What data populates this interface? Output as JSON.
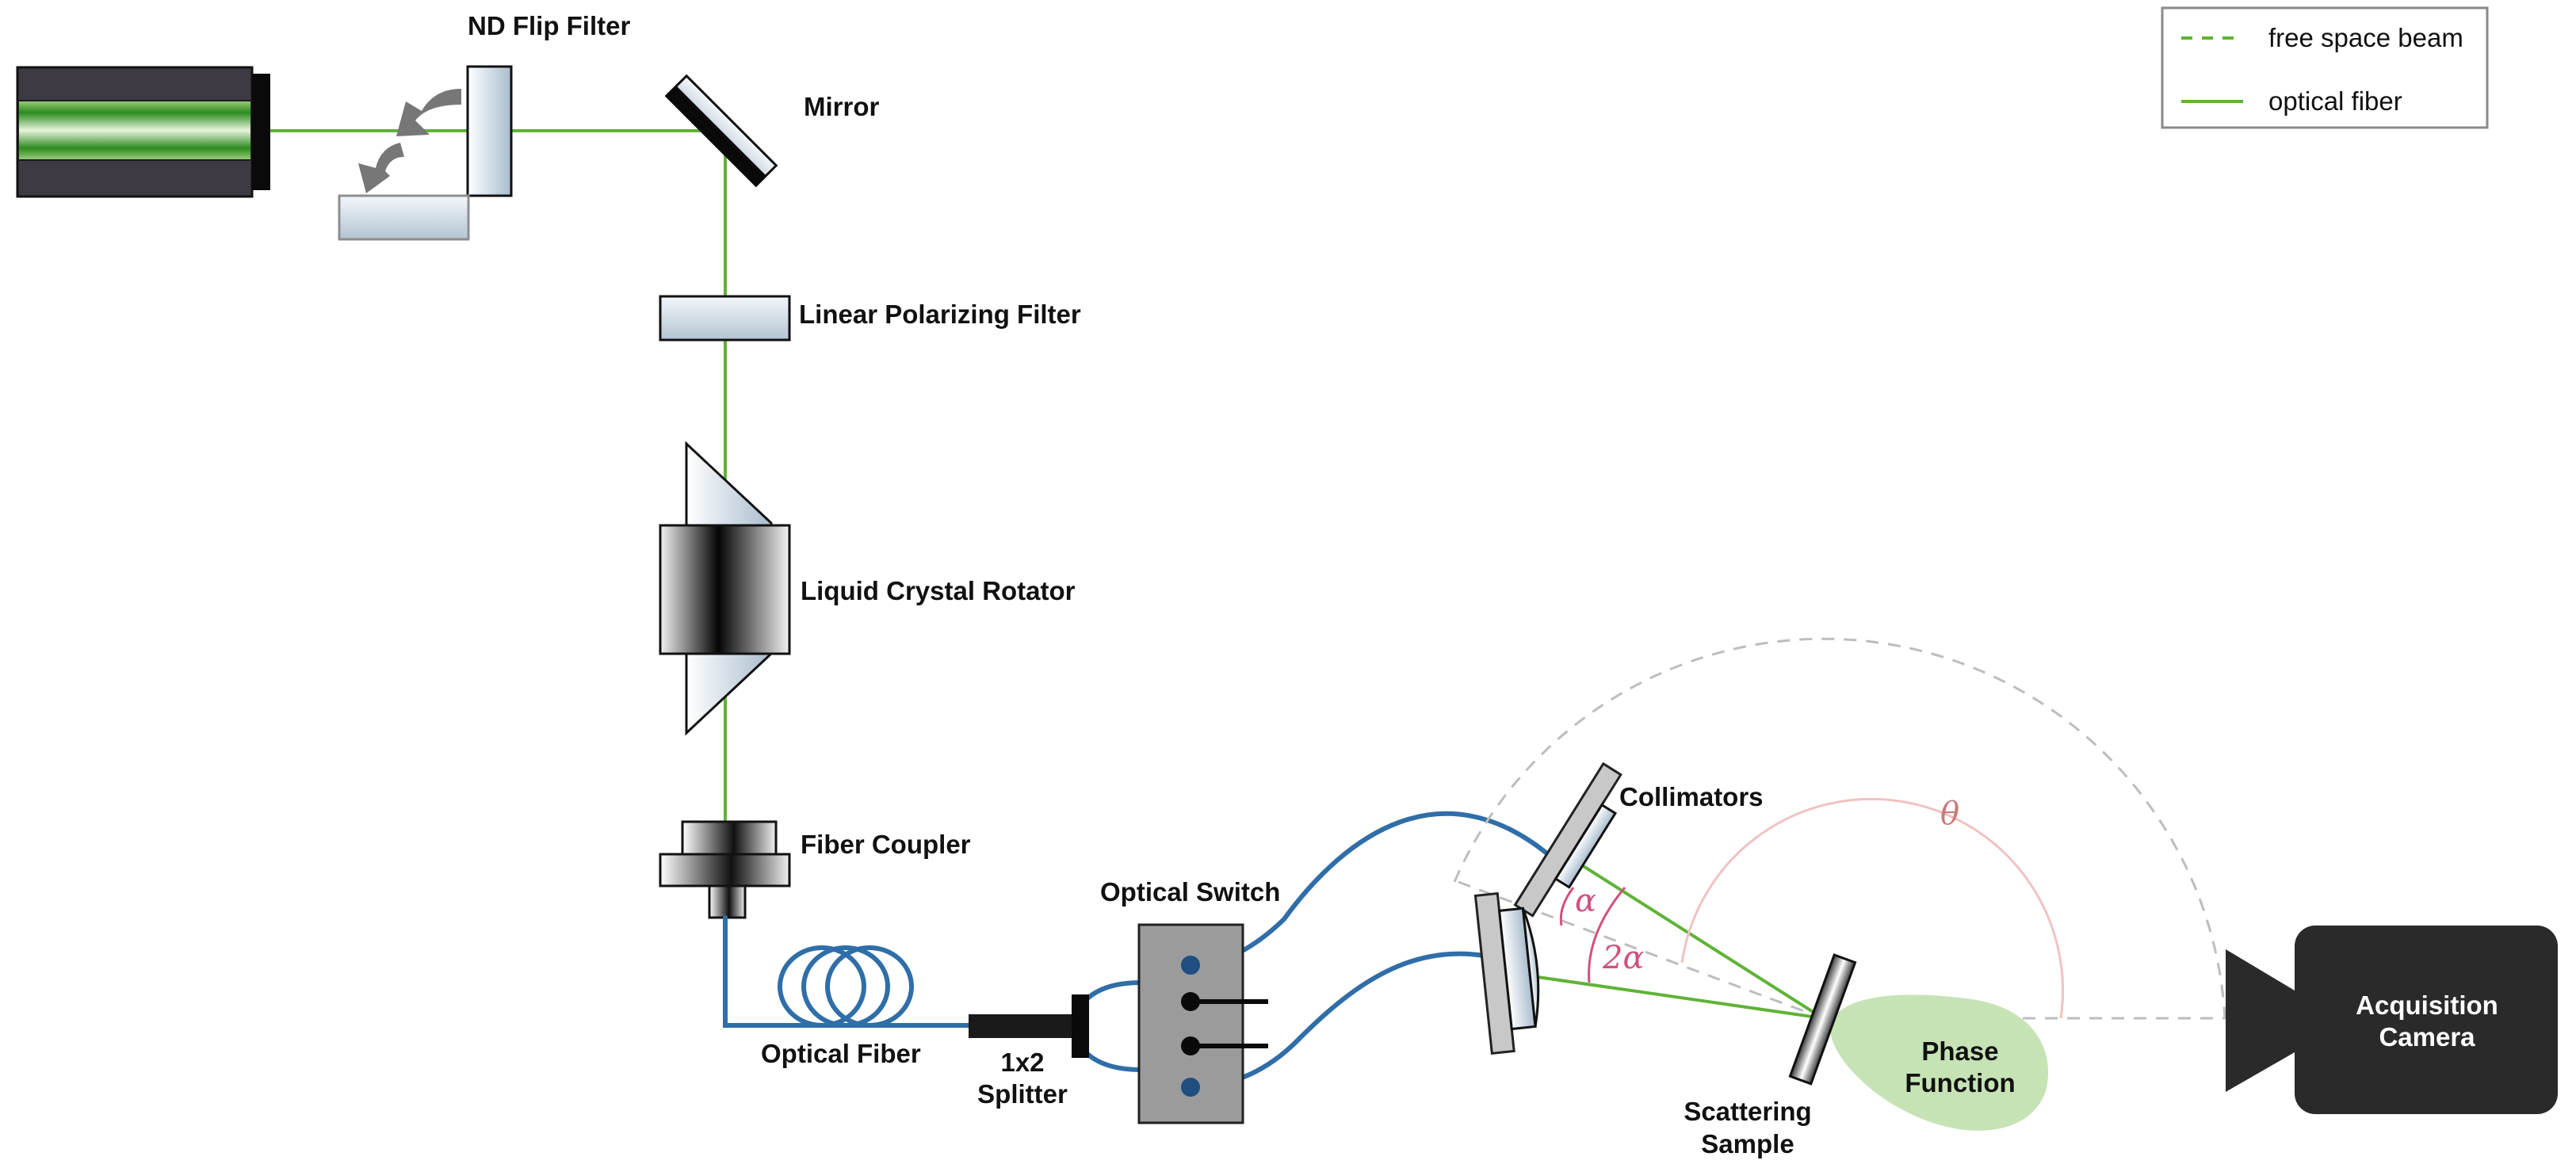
{
  "labels": {
    "nd_flip_filter": "ND Flip Filter",
    "mirror": "Mirror",
    "linear_polarizing_filter": "Linear Polarizing Filter",
    "liquid_crystal_rotator": "Liquid Crystal Rotator",
    "fiber_coupler": "Fiber Coupler",
    "optical_fiber": "Optical Fiber",
    "optical_switch": "Optical Switch",
    "splitter_line1": "1x2",
    "splitter_line2": "Splitter",
    "collimators": "Collimators",
    "scattering_sample_line1": "Scattering",
    "scattering_sample_line2": "Sample",
    "phase_function_line1": "Phase",
    "phase_function_line2": "Function",
    "acquisition_camera_line1": "Acquisition",
    "acquisition_camera_line2": "Camera"
  },
  "angles": {
    "alpha": "α",
    "two_alpha": "2α",
    "theta": "θ"
  },
  "legend": {
    "free_space_beam": "free space beam",
    "optical_fiber": "optical fiber"
  },
  "colors": {
    "beam_green": "#5fb336",
    "fiber_blue": "#2f6ea8",
    "angle_pink": "#d0507f",
    "theta_pink": "#c87a7a",
    "phase_function_fill": "#c6e3b5",
    "camera_body": "#2a2a2a",
    "laser_body": "#3e3a44",
    "optic_tint": "#dfe8f0"
  }
}
